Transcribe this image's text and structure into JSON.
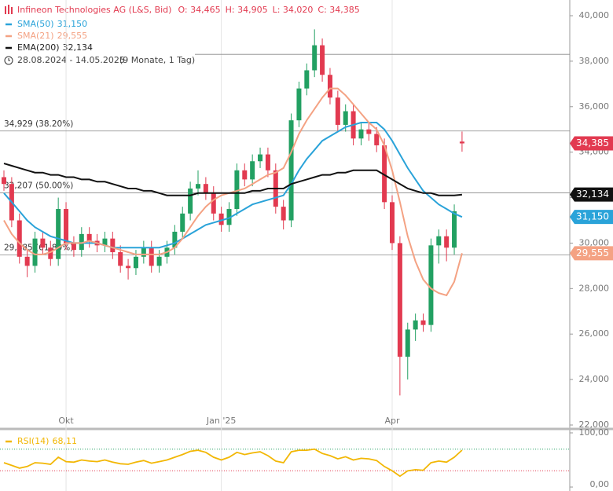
{
  "chart_data": {
    "type": "candlestick",
    "title": "Infineon Technologies AG (L&S, Bid)",
    "header_values": [
      "O: 34,465",
      "H: 34,905",
      "L: 34,020",
      "C: 34,385"
    ],
    "date_range": "28.08.2024 - 14.05.2025",
    "period": "(9 Monate, 1 Tag)",
    "up_color": "#22a062",
    "down_color": "#e23a50",
    "price_label": "34,385",
    "categories": [
      null,
      null,
      null,
      null,
      null,
      null,
      null,
      null,
      "Okt",
      null,
      null,
      null,
      null,
      null,
      null,
      null,
      null,
      null,
      null,
      null,
      null,
      null,
      null,
      null,
      null,
      null,
      null,
      null,
      "Jan '25",
      null,
      null,
      null,
      null,
      null,
      null,
      null,
      null,
      null,
      null,
      null,
      null,
      null,
      null,
      null,
      null,
      null,
      null,
      null,
      null,
      null,
      "Apr",
      null,
      null,
      null,
      null,
      null,
      null,
      null,
      null,
      null
    ],
    "ohlc": [
      [
        32900,
        33200,
        32300,
        32600
      ],
      [
        32600,
        32900,
        30700,
        31000
      ],
      [
        31000,
        31300,
        29100,
        29400
      ],
      [
        29400,
        29700,
        28500,
        29000
      ],
      [
        29000,
        30500,
        28700,
        30200
      ],
      [
        30200,
        30500,
        29500,
        29800
      ],
      [
        29800,
        30100,
        29000,
        29300
      ],
      [
        29300,
        32000,
        29000,
        31500
      ],
      [
        31500,
        31800,
        29700,
        30000
      ],
      [
        30000,
        30300,
        29400,
        29700
      ],
      [
        29700,
        30700,
        29400,
        30400
      ],
      [
        30400,
        30700,
        29800,
        30100
      ],
      [
        30100,
        30400,
        29600,
        29900
      ],
      [
        29900,
        30500,
        29600,
        30200
      ],
      [
        30200,
        30500,
        29300,
        29600
      ],
      [
        29600,
        29900,
        28700,
        29000
      ],
      [
        29000,
        29300,
        28400,
        28900
      ],
      [
        28900,
        29700,
        28600,
        29400
      ],
      [
        29400,
        30100,
        29100,
        29800
      ],
      [
        29800,
        30100,
        28700,
        29000
      ],
      [
        29000,
        29700,
        28700,
        29400
      ],
      [
        29400,
        30100,
        29100,
        29800
      ],
      [
        29800,
        30800,
        29500,
        30500
      ],
      [
        30500,
        31600,
        30200,
        31300
      ],
      [
        31300,
        32700,
        31000,
        32400
      ],
      [
        32400,
        33200,
        32100,
        32600
      ],
      [
        32600,
        32900,
        31900,
        32200
      ],
      [
        32200,
        32500,
        31000,
        31300
      ],
      [
        31300,
        31600,
        30500,
        30800
      ],
      [
        30800,
        31800,
        30500,
        31500
      ],
      [
        31500,
        33500,
        31200,
        33200
      ],
      [
        33200,
        33500,
        32500,
        32800
      ],
      [
        32800,
        33900,
        32500,
        33600
      ],
      [
        33600,
        34200,
        33300,
        33900
      ],
      [
        33900,
        34200,
        32900,
        33200
      ],
      [
        33200,
        33500,
        31300,
        31600
      ],
      [
        31600,
        31900,
        30600,
        31000
      ],
      [
        31000,
        35700,
        30700,
        35400
      ],
      [
        35400,
        37100,
        35100,
        36800
      ],
      [
        36800,
        37900,
        36500,
        37600
      ],
      [
        37600,
        39400,
        37300,
        38700
      ],
      [
        38700,
        39000,
        37100,
        37400
      ],
      [
        37400,
        37700,
        36100,
        36400
      ],
      [
        36400,
        36700,
        34900,
        35200
      ],
      [
        35200,
        36100,
        34900,
        35800
      ],
      [
        35800,
        36100,
        34300,
        34600
      ],
      [
        34600,
        35300,
        34300,
        35000
      ],
      [
        35000,
        35300,
        34500,
        34800
      ],
      [
        34800,
        35100,
        34000,
        34300
      ],
      [
        34300,
        34600,
        31500,
        31800
      ],
      [
        31800,
        32100,
        29700,
        30000
      ],
      [
        30000,
        30300,
        23300,
        25000
      ],
      [
        25000,
        26500,
        24000,
        26200
      ],
      [
        26200,
        26900,
        25700,
        26600
      ],
      [
        26600,
        26900,
        26100,
        26400
      ],
      [
        26400,
        30200,
        26100,
        29900
      ],
      [
        29900,
        30600,
        29100,
        30300
      ],
      [
        30300,
        30600,
        29200,
        29800
      ],
      [
        29800,
        31700,
        29500,
        31400
      ],
      [
        34465,
        34905,
        34020,
        34385
      ]
    ],
    "series": [
      {
        "name": "SMA(50)",
        "color": "#2aa3d9",
        "last_label": "31,150",
        "values": [
          32200,
          31800,
          31400,
          31000,
          30700,
          30500,
          30300,
          30200,
          30100,
          30000,
          30000,
          30000,
          30000,
          29900,
          29800,
          29800,
          29800,
          29800,
          29800,
          29800,
          29800,
          29900,
          30000,
          30200,
          30400,
          30600,
          30800,
          30900,
          31000,
          31100,
          31300,
          31500,
          31700,
          31800,
          31900,
          32000,
          32100,
          32600,
          33200,
          33700,
          34100,
          34500,
          34700,
          34900,
          35100,
          35200,
          35300,
          35300,
          35300,
          35000,
          34500,
          33900,
          33300,
          32800,
          32300,
          32000,
          31700,
          31500,
          31300,
          31150
        ]
      },
      {
        "name": "SMA(21)",
        "color": "#f4a283",
        "last_label": "29,555",
        "values": [
          31000,
          30400,
          30000,
          29700,
          29500,
          29500,
          29600,
          29800,
          30000,
          30000,
          30000,
          30100,
          30000,
          29900,
          29800,
          29700,
          29600,
          29500,
          29500,
          29500,
          29500,
          29600,
          29800,
          30200,
          30700,
          31200,
          31600,
          31900,
          32100,
          32200,
          32300,
          32400,
          32600,
          32800,
          33000,
          33100,
          33300,
          34000,
          34800,
          35400,
          35900,
          36400,
          36800,
          36800,
          36500,
          36100,
          35700,
          35300,
          35000,
          34300,
          33200,
          31800,
          30300,
          29200,
          28400,
          28000,
          27800,
          27700,
          28300,
          29555
        ]
      },
      {
        "name": "EMA(200)",
        "color": "#111111",
        "last_label": "32,134",
        "values": [
          33500,
          33400,
          33300,
          33200,
          33100,
          33100,
          33000,
          33000,
          32900,
          32900,
          32800,
          32800,
          32700,
          32700,
          32600,
          32500,
          32400,
          32400,
          32300,
          32300,
          32200,
          32100,
          32100,
          32100,
          32100,
          32200,
          32200,
          32200,
          32200,
          32200,
          32200,
          32200,
          32300,
          32300,
          32400,
          32400,
          32400,
          32600,
          32700,
          32800,
          32900,
          33000,
          33000,
          33100,
          33100,
          33200,
          33200,
          33200,
          33200,
          33000,
          32800,
          32600,
          32400,
          32300,
          32200,
          32200,
          32100,
          32100,
          32100,
          32134
        ]
      }
    ],
    "levels": [
      {
        "value": 34929,
        "label": "34,929 (38.20%)"
      },
      {
        "value": 32207,
        "label": "32,207 (50.00%)"
      },
      {
        "value": 29485,
        "label": "29,485 (61.80%)"
      }
    ],
    "hlines": [
      38300
    ],
    "ylim": [
      22000,
      40000
    ],
    "yticks": [
      {
        "value": 22000,
        "label": "22,000"
      },
      {
        "value": 24000,
        "label": "24,000"
      },
      {
        "value": 26000,
        "label": "26,000"
      },
      {
        "value": 28000,
        "label": "28,000"
      },
      {
        "value": 30000,
        "label": "30,000"
      },
      {
        "value": 32000,
        "label": "32,000"
      },
      {
        "value": 34000,
        "label": "34,000"
      },
      {
        "value": 36000,
        "label": "36,000"
      },
      {
        "value": 38000,
        "label": "38,000"
      },
      {
        "value": 40000,
        "label": "40,000"
      }
    ],
    "rsi": {
      "name": "RSI(14)",
      "color": "#f2b705",
      "last_label": "68,11",
      "values": [
        45,
        40,
        35,
        38,
        45,
        44,
        42,
        55,
        47,
        46,
        50,
        48,
        47,
        50,
        46,
        43,
        42,
        46,
        49,
        44,
        47,
        50,
        55,
        60,
        66,
        68,
        64,
        55,
        50,
        55,
        64,
        60,
        63,
        65,
        58,
        48,
        45,
        65,
        68,
        68,
        70,
        62,
        58,
        52,
        56,
        50,
        53,
        52,
        49,
        38,
        30,
        20,
        30,
        32,
        31,
        45,
        48,
        46,
        55,
        68.11
      ],
      "ylim": [
        0,
        100
      ],
      "yticks": [
        {
          "value": 0,
          "label": "0,00"
        },
        {
          "value": 100,
          "label": "100,00"
        }
      ],
      "bands": [
        {
          "value": 30,
          "color": "#e23a50"
        },
        {
          "value": 70,
          "color": "#22a062"
        }
      ]
    }
  }
}
